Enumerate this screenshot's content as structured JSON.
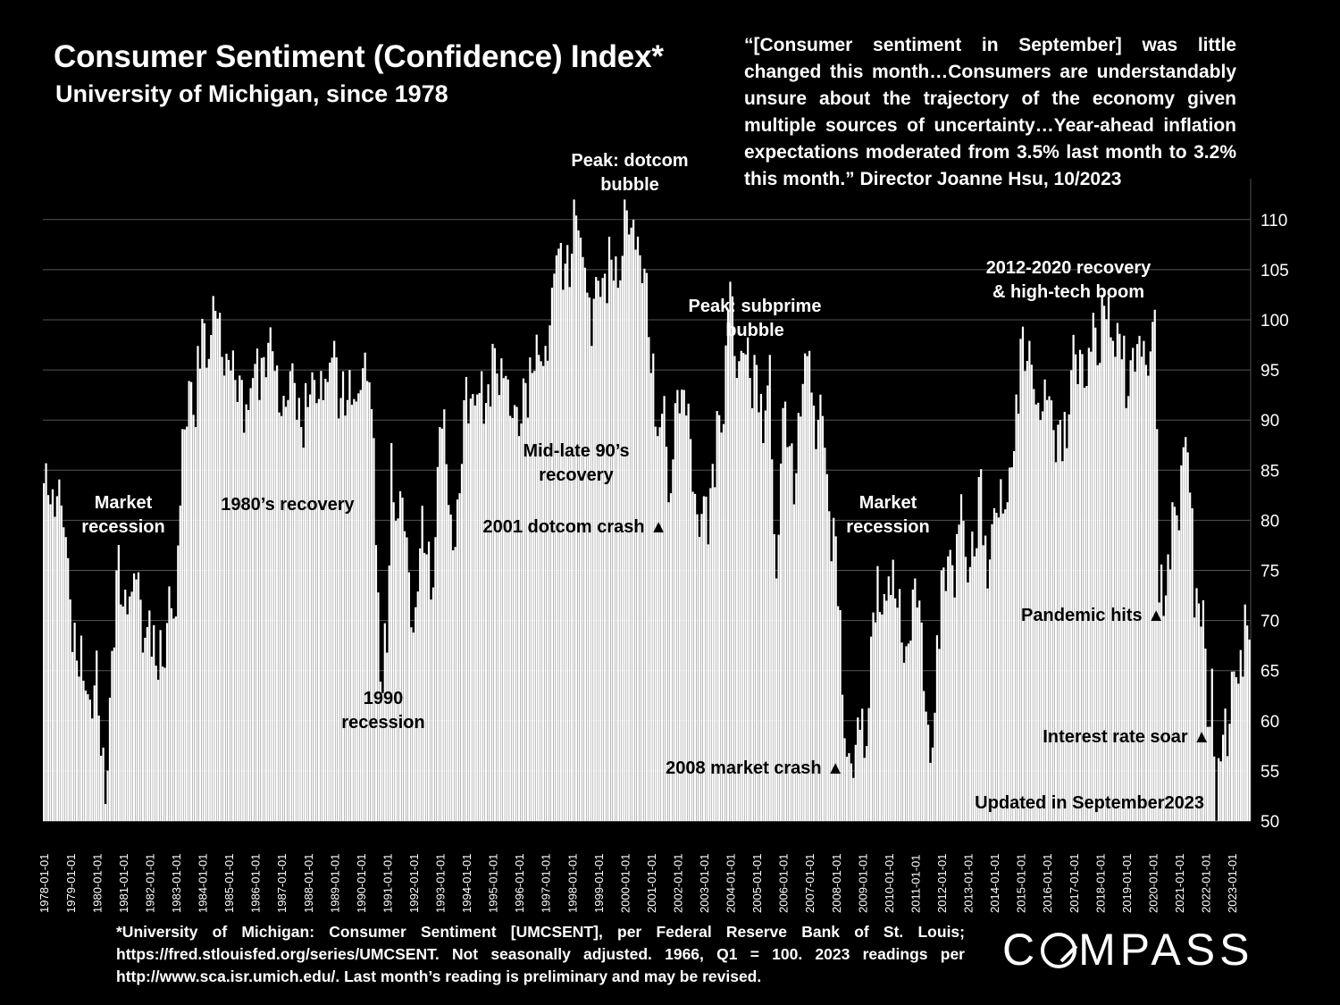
{
  "title": "Consumer Sentiment (Confidence) Index*",
  "subtitle": "University of Michigan, since 1978",
  "quote": "“[Consumer sentiment in September] was little changed this month…Consumers are understandably unsure about the trajectory of the economy given multiple sources of uncertainty…Year-ahead inflation expectations moderated from 3.5% last month to 3.2% this month.” Director Joanne Hsu, 10/2023",
  "footnote": "*University of Michigan: Consumer Sentiment [UMCSENT], per Federal Reserve Bank of St. Louis; https://fred.stlouisfed.org/series/UMCSENT. Not seasonally adjusted. 1966, Q1 = 100.  2023 readings per http://www.sca.isr.umich.edu/. Last month’s reading is preliminary and may be revised.",
  "logo_text": "COMPASS",
  "colors": {
    "background": "#000000",
    "bars": "#ffffff",
    "text": "#ffffff",
    "grid": "#555555"
  },
  "chart_data": {
    "type": "bar",
    "x_start": "1978-01",
    "x_end": "2023-09",
    "ylim": [
      50,
      112
    ],
    "y_ticks": [
      50,
      55,
      60,
      65,
      70,
      75,
      80,
      85,
      90,
      95,
      100,
      105,
      110
    ],
    "x_tick_labels": [
      "1978-01-01",
      "1979-01-01",
      "1980-01-01",
      "1981-01-01",
      "1982-01-01",
      "1983-01-01",
      "1984-01-01",
      "1985-01-01",
      "1986-01-01",
      "1987-01-01",
      "1988-01-01",
      "1989-01-01",
      "1990-01-01",
      "1991-01-01",
      "1992-01-01",
      "1993-01-01",
      "1994-01-01",
      "1995-01-01",
      "1996-01-01",
      "1997-01-01",
      "1998-01-01",
      "1999-01-01",
      "2000-01-01",
      "2001-01-01",
      "2002-01-01",
      "2003-01-01",
      "2004-01-01",
      "2005-01-01",
      "2006-01-01",
      "2007-01-01",
      "2008-01-01",
      "2009-01-01",
      "2010-01-01",
      "2011-01-01",
      "2012-01-01",
      "2013-01-01",
      "2014-01-01",
      "2015-01-01",
      "2016-01-01",
      "2017-01-01",
      "2018-01-01",
      "2019-01-01",
      "2020-01-01",
      "2021-01-01",
      "2022-01-01",
      "2023-01-01"
    ],
    "grid": true,
    "y_axis_side": "right",
    "anchors": [
      [
        "1978-01",
        83.7
      ],
      [
        "1978-04",
        81.6
      ],
      [
        "1978-07",
        82.4
      ],
      [
        "1978-10",
        79.3
      ],
      [
        "1979-01",
        72.1
      ],
      [
        "1979-04",
        66.0
      ],
      [
        "1979-07",
        64.0
      ],
      [
        "1979-10",
        62.1
      ],
      [
        "1980-01",
        67.0
      ],
      [
        "1980-03",
        56.5
      ],
      [
        "1980-05",
        51.7
      ],
      [
        "1980-07",
        62.3
      ],
      [
        "1980-10",
        75.0
      ],
      [
        "1981-01",
        71.4
      ],
      [
        "1981-04",
        72.4
      ],
      [
        "1981-07",
        74.1
      ],
      [
        "1981-10",
        66.8
      ],
      [
        "1982-01",
        71.0
      ],
      [
        "1982-04",
        65.5
      ],
      [
        "1982-07",
        65.4
      ],
      [
        "1982-10",
        73.4
      ],
      [
        "1983-01",
        70.4
      ],
      [
        "1983-04",
        89.1
      ],
      [
        "1983-07",
        93.9
      ],
      [
        "1983-10",
        89.3
      ],
      [
        "1984-01",
        100.1
      ],
      [
        "1984-04",
        96.1
      ],
      [
        "1984-07",
        100.9
      ],
      [
        "1984-10",
        96.3
      ],
      [
        "1985-01",
        96.0
      ],
      [
        "1985-04",
        94.0
      ],
      [
        "1985-07",
        94.0
      ],
      [
        "1985-10",
        91.0
      ],
      [
        "1986-01",
        95.6
      ],
      [
        "1986-04",
        96.2
      ],
      [
        "1986-07",
        97.7
      ],
      [
        "1986-10",
        94.9
      ],
      [
        "1987-01",
        90.4
      ],
      [
        "1987-04",
        92.0
      ],
      [
        "1987-07",
        93.7
      ],
      [
        "1987-10",
        89.3
      ],
      [
        "1988-01",
        91.3
      ],
      [
        "1988-04",
        94.0
      ],
      [
        "1988-07",
        94.9
      ],
      [
        "1988-10",
        93.8
      ],
      [
        "1989-01",
        97.9
      ],
      [
        "1989-04",
        92.2
      ],
      [
        "1989-07",
        92.0
      ],
      [
        "1989-10",
        92.1
      ],
      [
        "1990-01",
        93.0
      ],
      [
        "1990-04",
        93.9
      ],
      [
        "1990-07",
        88.2
      ],
      [
        "1990-09",
        72.8
      ],
      [
        "1990-10",
        63.9
      ],
      [
        "1991-01",
        66.8
      ],
      [
        "1991-03",
        87.7
      ],
      [
        "1991-04",
        81.8
      ],
      [
        "1991-07",
        82.9
      ],
      [
        "1991-10",
        78.3
      ],
      [
        "1992-01",
        68.8
      ],
      [
        "1992-04",
        77.2
      ],
      [
        "1992-07",
        76.6
      ],
      [
        "1992-10",
        73.3
      ],
      [
        "1993-01",
        89.3
      ],
      [
        "1993-04",
        85.6
      ],
      [
        "1993-07",
        77.0
      ],
      [
        "1993-10",
        82.7
      ],
      [
        "1994-01",
        94.3
      ],
      [
        "1994-04",
        92.6
      ],
      [
        "1994-07",
        92.7
      ],
      [
        "1994-10",
        91.7
      ],
      [
        "1995-01",
        97.6
      ],
      [
        "1995-04",
        92.5
      ],
      [
        "1995-07",
        94.4
      ],
      [
        "1995-10",
        90.2
      ],
      [
        "1996-01",
        88.4
      ],
      [
        "1996-04",
        93.7
      ],
      [
        "1996-07",
        94.7
      ],
      [
        "1996-10",
        96.5
      ],
      [
        "1997-01",
        97.4
      ],
      [
        "1997-04",
        103.2
      ],
      [
        "1997-07",
        107.1
      ],
      [
        "1997-10",
        105.6
      ],
      [
        "1998-01",
        106.6
      ],
      [
        "1998-03",
        110.4
      ],
      [
        "1998-07",
        105.2
      ],
      [
        "1998-10",
        97.4
      ],
      [
        "1999-01",
        103.9
      ],
      [
        "1999-04",
        104.6
      ],
      [
        "1999-07",
        106.0
      ],
      [
        "1999-10",
        103.2
      ],
      [
        "2000-01",
        112.0
      ],
      [
        "2000-04",
        109.2
      ],
      [
        "2000-07",
        108.3
      ],
      [
        "2000-10",
        105.1
      ],
      [
        "2001-01",
        94.7
      ],
      [
        "2001-04",
        88.4
      ],
      [
        "2001-07",
        92.4
      ],
      [
        "2001-09",
        81.8
      ],
      [
        "2001-10",
        82.7
      ],
      [
        "2002-01",
        93.0
      ],
      [
        "2002-04",
        93.0
      ],
      [
        "2002-07",
        88.1
      ],
      [
        "2002-10",
        80.6
      ],
      [
        "2003-01",
        82.4
      ],
      [
        "2003-03",
        77.6
      ],
      [
        "2003-07",
        90.9
      ],
      [
        "2003-10",
        89.6
      ],
      [
        "2004-01",
        103.8
      ],
      [
        "2004-04",
        94.2
      ],
      [
        "2004-07",
        96.7
      ],
      [
        "2004-10",
        94.2
      ],
      [
        "2005-01",
        95.5
      ],
      [
        "2005-04",
        87.7
      ],
      [
        "2005-07",
        96.5
      ],
      [
        "2005-10",
        74.2
      ],
      [
        "2006-01",
        91.2
      ],
      [
        "2006-04",
        87.4
      ],
      [
        "2006-07",
        84.7
      ],
      [
        "2006-10",
        93.6
      ],
      [
        "2007-01",
        96.9
      ],
      [
        "2007-04",
        87.1
      ],
      [
        "2007-07",
        90.4
      ],
      [
        "2007-10",
        80.9
      ],
      [
        "2008-01",
        78.4
      ],
      [
        "2008-04",
        62.6
      ],
      [
        "2008-06",
        56.4
      ],
      [
        "2008-10",
        57.6
      ],
      [
        "2009-01",
        61.2
      ],
      [
        "2009-02",
        56.3
      ],
      [
        "2009-06",
        70.8
      ],
      [
        "2009-10",
        70.6
      ],
      [
        "2010-01",
        74.4
      ],
      [
        "2010-04",
        72.2
      ],
      [
        "2010-07",
        67.8
      ],
      [
        "2010-10",
        67.7
      ],
      [
        "2011-01",
        74.2
      ],
      [
        "2011-04",
        69.8
      ],
      [
        "2011-08",
        55.8
      ],
      [
        "2011-10",
        60.8
      ],
      [
        "2012-01",
        75.0
      ],
      [
        "2012-04",
        76.4
      ],
      [
        "2012-07",
        72.3
      ],
      [
        "2012-10",
        82.6
      ],
      [
        "2013-01",
        73.8
      ],
      [
        "2013-04",
        76.4
      ],
      [
        "2013-07",
        85.1
      ],
      [
        "2013-10",
        73.2
      ],
      [
        "2014-01",
        81.2
      ],
      [
        "2014-04",
        84.1
      ],
      [
        "2014-07",
        81.8
      ],
      [
        "2014-10",
        86.9
      ],
      [
        "2015-01",
        98.1
      ],
      [
        "2015-04",
        95.9
      ],
      [
        "2015-07",
        93.1
      ],
      [
        "2015-10",
        90.0
      ],
      [
        "2016-01",
        92.0
      ],
      [
        "2016-04",
        89.0
      ],
      [
        "2016-07",
        90.0
      ],
      [
        "2016-10",
        87.2
      ],
      [
        "2017-01",
        98.5
      ],
      [
        "2017-04",
        97.0
      ],
      [
        "2017-07",
        93.4
      ],
      [
        "2017-10",
        100.7
      ],
      [
        "2018-01",
        95.7
      ],
      [
        "2018-03",
        101.4
      ],
      [
        "2018-07",
        97.9
      ],
      [
        "2018-10",
        98.6
      ],
      [
        "2019-01",
        91.2
      ],
      [
        "2019-04",
        97.2
      ],
      [
        "2019-07",
        98.4
      ],
      [
        "2019-10",
        95.5
      ],
      [
        "2020-01",
        99.8
      ],
      [
        "2020-02",
        101.0
      ],
      [
        "2020-03",
        89.1
      ],
      [
        "2020-04",
        71.8
      ],
      [
        "2020-07",
        72.5
      ],
      [
        "2020-10",
        81.8
      ],
      [
        "2021-01",
        79.0
      ],
      [
        "2021-04",
        88.3
      ],
      [
        "2021-07",
        81.2
      ],
      [
        "2021-08",
        70.3
      ],
      [
        "2021-10",
        71.7
      ],
      [
        "2022-01",
        67.2
      ],
      [
        "2022-03",
        59.4
      ],
      [
        "2022-04",
        65.2
      ],
      [
        "2022-06",
        50.0
      ],
      [
        "2022-09",
        58.6
      ],
      [
        "2022-12",
        59.7
      ],
      [
        "2023-01",
        64.9
      ],
      [
        "2023-04",
        63.7
      ],
      [
        "2023-06",
        64.4
      ],
      [
        "2023-07",
        71.6
      ],
      [
        "2023-08",
        69.5
      ],
      [
        "2023-09",
        68.1
      ]
    ],
    "annotations": [
      {
        "text": "Market\nrecession"
      },
      {
        "text": "1980’s recovery"
      },
      {
        "text": "1990\nrecession"
      },
      {
        "text": "Mid-late 90’s\nrecovery"
      },
      {
        "text": "Peak: dotcom\nbubble"
      },
      {
        "text": "2001 dotcom crash ▲"
      },
      {
        "text": "Peak: subprime\nbubble"
      },
      {
        "text": "2008 market crash ▲"
      },
      {
        "text": "Market\nrecession"
      },
      {
        "text": "2012-2020 recovery\n& high-tech boom"
      },
      {
        "text": "Pandemic hits ▲"
      },
      {
        "text": "Interest rate soar ▲"
      },
      {
        "text": "Updated in September2023"
      }
    ]
  }
}
